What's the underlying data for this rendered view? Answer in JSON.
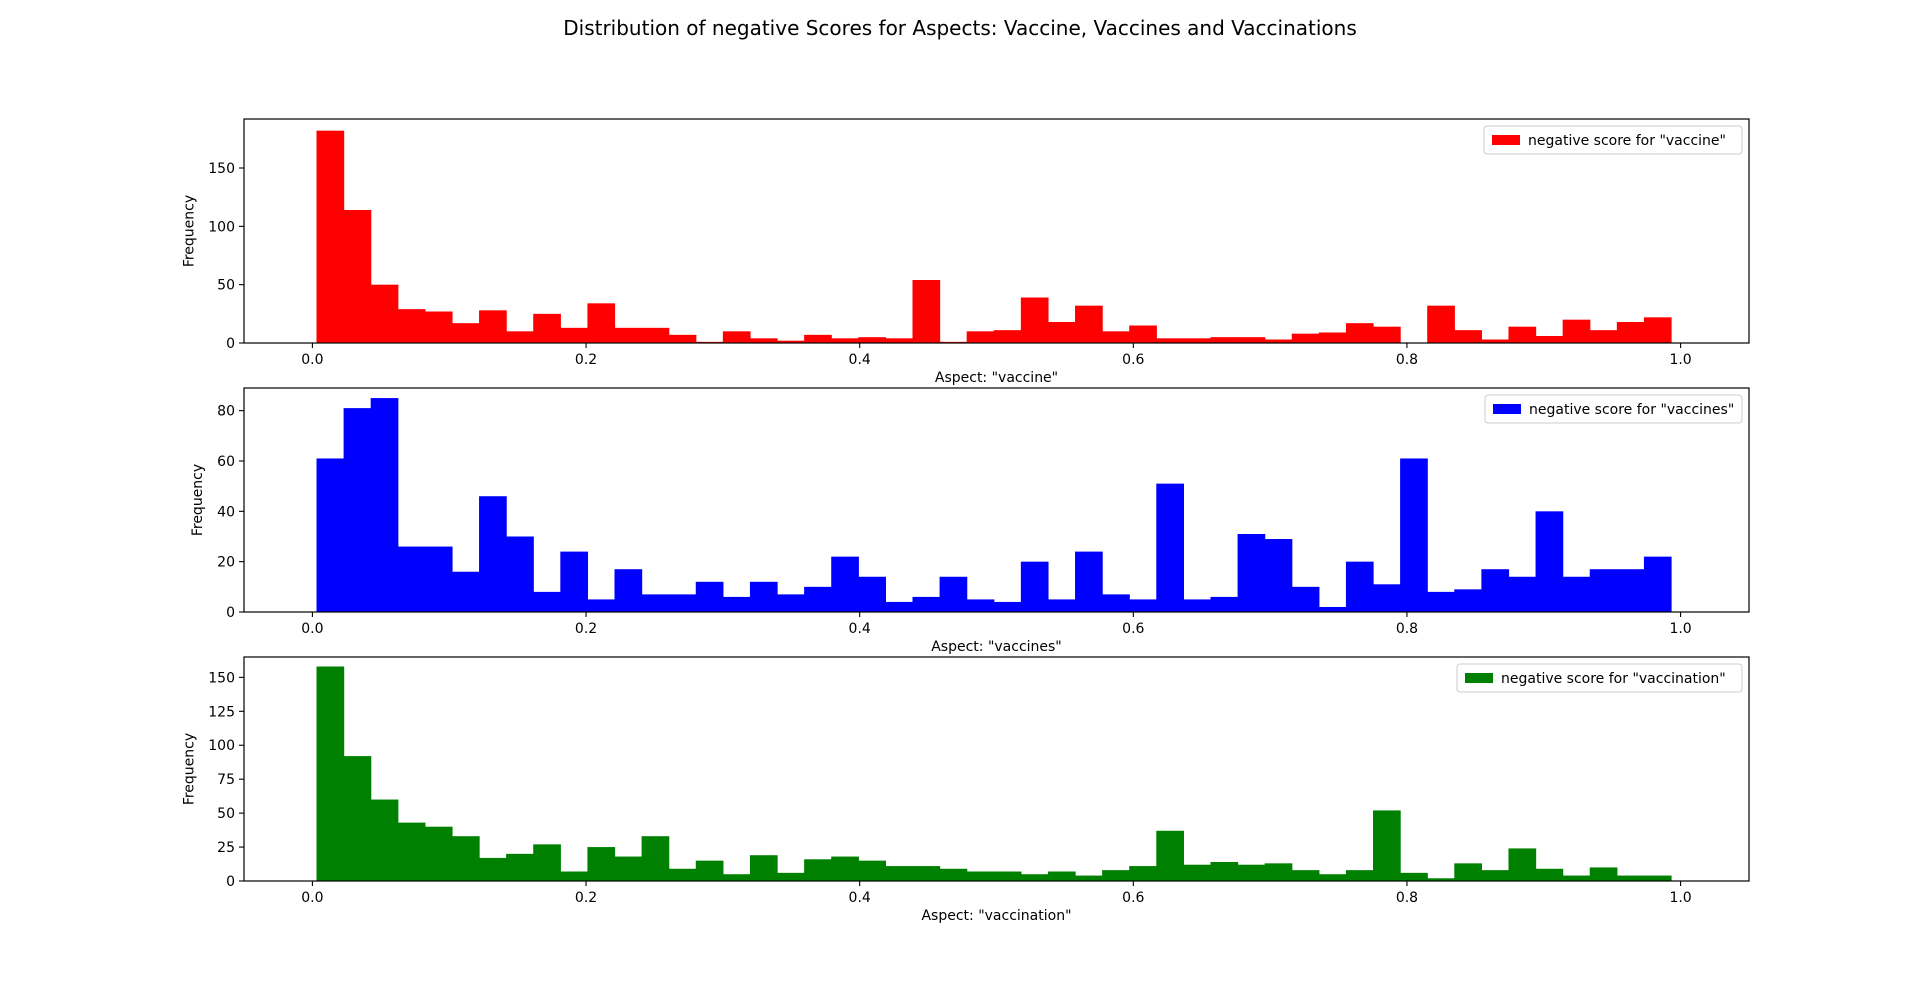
{
  "figure": {
    "title": "Distribution of negative Scores for Aspects: Vaccine, Vaccines and Vaccinations"
  },
  "chart_data": [
    {
      "type": "bar",
      "histogram": true,
      "xlabel": "Aspect: \"vaccine\"",
      "ylabel": "Frequency",
      "xlim": [
        -0.05,
        1.05
      ],
      "ylim": [
        0,
        192
      ],
      "xticks": [
        0.0,
        0.2,
        0.4,
        0.6,
        0.8,
        1.0
      ],
      "xtick_labels": [
        "0.0",
        "0.2",
        "0.4",
        "0.6",
        "0.8",
        "1.0"
      ],
      "yticks": [
        0,
        50,
        100,
        150
      ],
      "ytick_labels": [
        "0",
        "50",
        "100",
        "150"
      ],
      "bin_edges": [
        0.003,
        0.993
      ],
      "bin_count": 50,
      "legend": "top-right",
      "grid": false,
      "series": [
        {
          "name": "negative score for \"vaccine\"",
          "color": "#ff0000",
          "values": [
            182,
            114,
            50,
            29,
            27,
            17,
            28,
            10,
            25,
            13,
            34,
            13,
            13,
            7,
            1,
            10,
            4,
            2,
            7,
            4,
            5,
            4,
            54,
            1,
            10,
            11,
            39,
            18,
            32,
            10,
            15,
            4,
            4,
            5,
            5,
            3,
            8,
            9,
            17,
            14,
            0,
            32,
            11,
            3,
            14,
            6,
            20,
            11,
            18,
            22
          ]
        }
      ]
    },
    {
      "type": "bar",
      "histogram": true,
      "xlabel": "Aspect: \"vaccines\"",
      "ylabel": "Frequency",
      "xlim": [
        -0.05,
        1.05
      ],
      "ylim": [
        0,
        89
      ],
      "xticks": [
        0.0,
        0.2,
        0.4,
        0.6,
        0.8,
        1.0
      ],
      "xtick_labels": [
        "0.0",
        "0.2",
        "0.4",
        "0.6",
        "0.8",
        "1.0"
      ],
      "yticks": [
        0,
        20,
        40,
        60,
        80
      ],
      "ytick_labels": [
        "0",
        "20",
        "40",
        "60",
        "80"
      ],
      "bin_edges": [
        0.003,
        0.993
      ],
      "bin_count": 50,
      "legend": "top-right",
      "grid": false,
      "series": [
        {
          "name": "negative score for \"vaccines\"",
          "color": "#0000ff",
          "values": [
            61,
            81,
            85,
            26,
            26,
            16,
            46,
            30,
            8,
            24,
            5,
            17,
            7,
            7,
            12,
            6,
            12,
            7,
            10,
            22,
            14,
            4,
            6,
            14,
            5,
            4,
            20,
            5,
            24,
            7,
            5,
            51,
            5,
            6,
            31,
            29,
            10,
            2,
            20,
            11,
            61,
            8,
            9,
            17,
            14,
            40,
            14,
            17,
            17,
            22
          ]
        }
      ]
    },
    {
      "type": "bar",
      "histogram": true,
      "xlabel": "Aspect: \"vaccination\"",
      "ylabel": "Frequency",
      "xlim": [
        -0.05,
        1.05
      ],
      "ylim": [
        0,
        165
      ],
      "xticks": [
        0.0,
        0.2,
        0.4,
        0.6,
        0.8,
        1.0
      ],
      "xtick_labels": [
        "0.0",
        "0.2",
        "0.4",
        "0.6",
        "0.8",
        "1.0"
      ],
      "yticks": [
        0,
        25,
        50,
        75,
        100,
        125,
        150
      ],
      "ytick_labels": [
        "0",
        "25",
        "50",
        "75",
        "100",
        "125",
        "150"
      ],
      "bin_edges": [
        0.003,
        0.993
      ],
      "bin_count": 50,
      "legend": "top-right",
      "grid": false,
      "series": [
        {
          "name": "negative score for \"vaccination\"",
          "color": "#008000",
          "values": [
            158,
            92,
            60,
            43,
            40,
            33,
            17,
            20,
            27,
            7,
            25,
            18,
            33,
            9,
            15,
            5,
            19,
            6,
            16,
            18,
            15,
            11,
            11,
            9,
            7,
            7,
            5,
            7,
            4,
            8,
            11,
            37,
            12,
            14,
            12,
            13,
            8,
            5,
            8,
            52,
            6,
            2,
            13,
            8,
            24,
            9,
            4,
            10,
            4,
            4
          ]
        }
      ]
    }
  ]
}
